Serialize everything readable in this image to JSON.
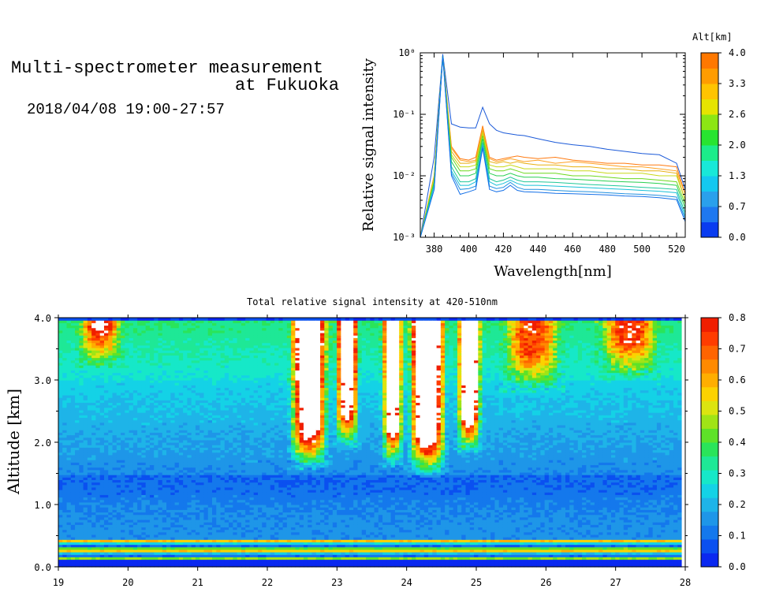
{
  "header": {
    "title_line1": "Multi-spectrometer measurement",
    "title_line2": "at Fukuoka",
    "date_range": "2018/04/08 19:00-27:57"
  },
  "chart_data": [
    {
      "type": "line",
      "xlabel": "Wavelength[nm]",
      "ylabel": "Relative signal intensity",
      "x_ticks": [
        380,
        400,
        420,
        440,
        460,
        480,
        500,
        520
      ],
      "xlim": [
        372,
        525
      ],
      "ylim": [
        0.001,
        1
      ],
      "y_scale": "log",
      "y_tick_labels": [
        "10⁻³",
        "10⁻²",
        "10⁻¹",
        "10⁰"
      ],
      "colorbar": {
        "label": "Alt[km]",
        "ticks": [
          "0.0",
          "0.7",
          "1.3",
          "2.0",
          "2.6",
          "3.3",
          "4.0"
        ],
        "colors": [
          "#0a3cf0",
          "#1e78f0",
          "#2aa0ec",
          "#14c8f0",
          "#18e8d8",
          "#1cec8a",
          "#28e430",
          "#8ce614",
          "#e6e400",
          "#ffc400",
          "#ff9c00",
          "#ff7800"
        ]
      },
      "x": [
        372,
        380,
        385,
        390,
        395,
        400,
        404,
        408,
        412,
        416,
        420,
        424,
        428,
        432,
        440,
        450,
        460,
        470,
        480,
        490,
        500,
        510,
        520,
        525
      ],
      "series": [
        {
          "color": "#1c5ad8",
          "values": [
            0.001,
            0.02,
            0.95,
            0.07,
            0.062,
            0.06,
            0.06,
            0.13,
            0.07,
            0.055,
            0.05,
            0.048,
            0.046,
            0.045,
            0.04,
            0.035,
            0.032,
            0.03,
            0.027,
            0.025,
            0.023,
            0.022,
            0.016,
            0.006
          ]
        },
        {
          "color": "#ff7a10",
          "values": [
            0.001,
            0.01,
            0.9,
            0.03,
            0.019,
            0.018,
            0.02,
            0.065,
            0.02,
            0.018,
            0.019,
            0.02,
            0.021,
            0.02,
            0.019,
            0.02,
            0.018,
            0.017,
            0.016,
            0.016,
            0.015,
            0.015,
            0.014,
            0.005
          ]
        },
        {
          "color": "#ffa020",
          "values": [
            0.001,
            0.01,
            0.9,
            0.028,
            0.018,
            0.017,
            0.018,
            0.06,
            0.019,
            0.017,
            0.018,
            0.019,
            0.018,
            0.017,
            0.018,
            0.016,
            0.017,
            0.016,
            0.015,
            0.014,
            0.014,
            0.013,
            0.012,
            0.005
          ]
        },
        {
          "color": "#e8b010",
          "values": [
            0.001,
            0.01,
            0.9,
            0.025,
            0.016,
            0.016,
            0.017,
            0.055,
            0.017,
            0.016,
            0.017,
            0.016,
            0.017,
            0.016,
            0.015,
            0.015,
            0.014,
            0.014,
            0.013,
            0.013,
            0.012,
            0.012,
            0.011,
            0.004
          ]
        },
        {
          "color": "#c8d818",
          "values": [
            0.001,
            0.009,
            0.9,
            0.022,
            0.014,
            0.014,
            0.015,
            0.05,
            0.015,
            0.014,
            0.014,
            0.015,
            0.014,
            0.013,
            0.013,
            0.013,
            0.012,
            0.012,
            0.011,
            0.011,
            0.011,
            0.01,
            0.01,
            0.004
          ]
        },
        {
          "color": "#6cd81c",
          "values": [
            0.001,
            0.008,
            0.9,
            0.02,
            0.012,
            0.012,
            0.013,
            0.045,
            0.013,
            0.012,
            0.012,
            0.013,
            0.012,
            0.011,
            0.011,
            0.011,
            0.01,
            0.01,
            0.0095,
            0.009,
            0.009,
            0.0085,
            0.008,
            0.0035
          ]
        },
        {
          "color": "#28d050",
          "values": [
            0.001,
            0.008,
            0.9,
            0.017,
            0.01,
            0.01,
            0.011,
            0.04,
            0.011,
            0.01,
            0.01,
            0.011,
            0.01,
            0.0095,
            0.0095,
            0.009,
            0.0088,
            0.0085,
            0.0082,
            0.008,
            0.0078,
            0.0075,
            0.007,
            0.003
          ]
        },
        {
          "color": "#20c898",
          "values": [
            0.001,
            0.007,
            0.9,
            0.014,
            0.008,
            0.008,
            0.009,
            0.035,
            0.009,
            0.008,
            0.0085,
            0.0095,
            0.0085,
            0.008,
            0.008,
            0.0078,
            0.0075,
            0.0072,
            0.007,
            0.0068,
            0.0065,
            0.0063,
            0.006,
            0.0025
          ]
        },
        {
          "color": "#18c0d8",
          "values": [
            0.001,
            0.007,
            0.9,
            0.012,
            0.007,
            0.007,
            0.008,
            0.032,
            0.008,
            0.007,
            0.0075,
            0.0085,
            0.0075,
            0.007,
            0.007,
            0.0068,
            0.0066,
            0.0064,
            0.0062,
            0.006,
            0.0058,
            0.0056,
            0.0053,
            0.0022
          ]
        },
        {
          "color": "#2090e0",
          "values": [
            0.001,
            0.006,
            0.9,
            0.011,
            0.006,
            0.0062,
            0.0068,
            0.03,
            0.0068,
            0.0062,
            0.0065,
            0.0078,
            0.0065,
            0.006,
            0.006,
            0.0058,
            0.0056,
            0.0055,
            0.0053,
            0.0051,
            0.005,
            0.0048,
            0.0045,
            0.002
          ]
        },
        {
          "color": "#1470e8",
          "values": [
            0.001,
            0.006,
            0.9,
            0.01,
            0.005,
            0.0055,
            0.006,
            0.028,
            0.006,
            0.0055,
            0.0058,
            0.007,
            0.0058,
            0.0055,
            0.0054,
            0.0052,
            0.0051,
            0.005,
            0.0049,
            0.0047,
            0.0046,
            0.0044,
            0.0041,
            0.0018
          ]
        }
      ]
    },
    {
      "type": "heatmap",
      "title": "Total relative signal intensity at 420-510nm",
      "ylabel": "Altitude [km]",
      "x_ticks": [
        "19",
        "20",
        "21",
        "22",
        "23",
        "24",
        "25",
        "26",
        "27",
        "28"
      ],
      "y_ticks": [
        "0.0",
        "1.0",
        "2.0",
        "3.0",
        "4.0"
      ],
      "xlim": [
        19,
        28
      ],
      "ylim": [
        0,
        4
      ],
      "data_x_end": 27.95,
      "colorbar": {
        "ticks": [
          "0.0",
          "0.1",
          "0.2",
          "0.3",
          "0.4",
          "0.5",
          "0.6",
          "0.7",
          "0.8"
        ],
        "range": [
          0,
          0.8
        ],
        "colors": [
          "#0a28f0",
          "#0a50f0",
          "#1478ec",
          "#1e96e8",
          "#1eb4e8",
          "#14d2e6",
          "#16e8c8",
          "#1ee896",
          "#2ae45a",
          "#5ee228",
          "#a0e416",
          "#dce410",
          "#fcd200",
          "#ffae00",
          "#ff8a00",
          "#ff6400",
          "#ff3c00",
          "#f01e00"
        ]
      },
      "saturated_color": "#ffffff",
      "cloud_regions": [
        {
          "x_center": 22.6,
          "width": 0.55,
          "base_km": 1.55,
          "strength": 0.78
        },
        {
          "x_center": 23.15,
          "width": 0.35,
          "base_km": 1.9,
          "strength": 0.7
        },
        {
          "x_center": 23.8,
          "width": 0.3,
          "base_km": 1.6,
          "strength": 0.74
        },
        {
          "x_center": 24.3,
          "width": 0.55,
          "base_km": 1.45,
          "strength": 0.82
        },
        {
          "x_center": 24.9,
          "width": 0.35,
          "base_km": 1.8,
          "strength": 0.8
        },
        {
          "x_center": 19.6,
          "width": 0.6,
          "base_km": 3.2,
          "strength": 0.5
        },
        {
          "x_center": 25.8,
          "width": 0.8,
          "base_km": 2.8,
          "strength": 0.42
        },
        {
          "x_center": 27.2,
          "width": 0.8,
          "base_km": 3.0,
          "strength": 0.45
        }
      ],
      "surface_band_km": [
        0.12,
        0.42
      ],
      "background_levels": {
        "low_km_0_5_to_1_5": 0.12,
        "mid_km_2_to_3": 0.23,
        "top_km_3_5_to_4": 0.32
      }
    }
  ]
}
